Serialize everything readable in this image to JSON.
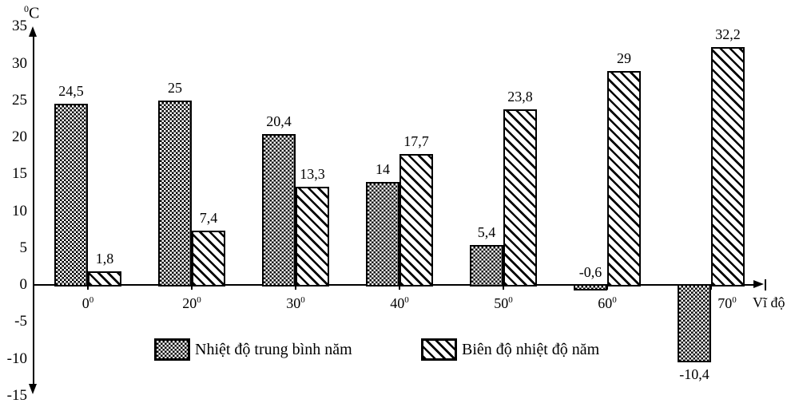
{
  "figure": {
    "y_axis_unit": {
      "superscript": "0",
      "letter": "C"
    },
    "x_axis_title": "Vĩ độ"
  },
  "chart_data": {
    "type": "bar",
    "title": "",
    "ylabel": "⁰C",
    "ylabel_parts": {
      "superscript": "0",
      "letter": "C"
    },
    "xlabel": "Vĩ độ",
    "ylim": [
      -15,
      35
    ],
    "ytick_interval": 5,
    "ytick_values": [
      35,
      30,
      25,
      20,
      15,
      10,
      5,
      0,
      -5,
      -10,
      -15
    ],
    "ytick_labels": [
      "35",
      "30",
      "25",
      "20",
      "15",
      "10",
      "5",
      "0",
      "-5",
      "-10",
      "-15"
    ],
    "categories": [
      "0",
      "20",
      "30",
      "40",
      "50",
      "60",
      "70"
    ],
    "category_superscript": "0",
    "grid": false,
    "legend_position": "bottom-center",
    "series": [
      {
        "name": "Nhiệt độ trung bình năm",
        "key": "avg-temp",
        "pattern": "checker",
        "values": [
          24.5,
          25,
          20.4,
          14,
          5.4,
          -0.6,
          -10.4
        ],
        "labels": [
          "24,5",
          "25",
          "20,4",
          "14",
          "5,4",
          "-0,6",
          "-10,4"
        ]
      },
      {
        "name": "Biên độ nhiệt độ năm",
        "key": "amplitude",
        "pattern": "diagonal",
        "values": [
          1.8,
          7.4,
          13.3,
          17.7,
          23.8,
          29,
          32.2
        ],
        "labels": [
          "1,8",
          "7,4",
          "13,3",
          "17,7",
          "23,8",
          "29",
          "32,2"
        ]
      }
    ],
    "colors": {
      "foreground": "#000000",
      "background": "#ffffff"
    }
  }
}
